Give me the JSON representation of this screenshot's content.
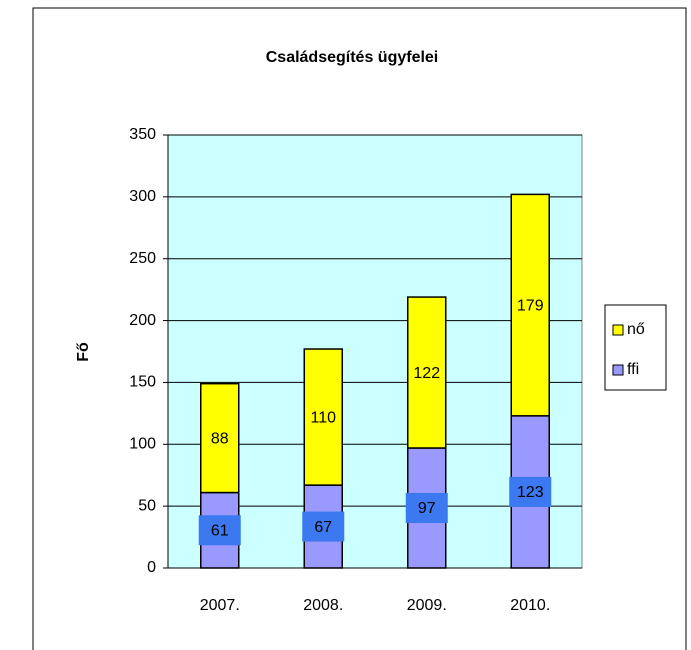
{
  "chart_data": {
    "type": "bar",
    "stacked": true,
    "title": "Családsegítés ügyfelei",
    "y_label": "Fő",
    "categories": [
      "2007.",
      "2008.",
      "2009.",
      "2010."
    ],
    "series": [
      {
        "name": "ffi",
        "color": "#9999ff",
        "label_background": "#3c78f0",
        "values": [
          61,
          67,
          97,
          123
        ]
      },
      {
        "name": "nő",
        "color": "#ffff00",
        "values": [
          88,
          110,
          122,
          179
        ]
      }
    ],
    "ylim": [
      0,
      350
    ],
    "yticks": [
      0,
      50,
      100,
      150,
      200,
      250,
      300,
      350
    ],
    "grid": true,
    "plot_background": "#ccffff",
    "legend": "right"
  }
}
